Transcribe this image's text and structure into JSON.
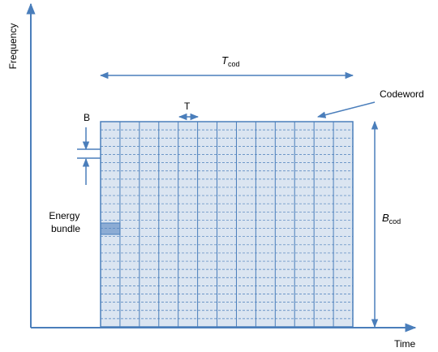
{
  "axes": {
    "x_label": "Time",
    "y_label": "Frequency"
  },
  "labels": {
    "t_cod_main": "T",
    "t_cod_sub": "cod",
    "b_cod_main": "B",
    "b_cod_sub": "cod",
    "t": "T",
    "b": "B",
    "codeword": "Codeword",
    "energy_bundle_line1": "Energy",
    "energy_bundle_line2": "bundle"
  },
  "grid": {
    "columns": 13,
    "rows": 25
  },
  "colors": {
    "arrow": "#4a7ebb",
    "grid_fill": "#dbe5f1",
    "grid_line": "#4a7ebb",
    "highlight": "#4a7ebb"
  }
}
